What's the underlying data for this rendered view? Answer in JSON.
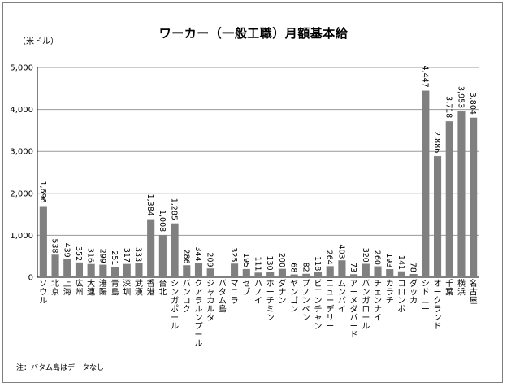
{
  "chart_data": {
    "type": "bar",
    "title": "ワーカー（一般工職）月額基本給",
    "ylabel": "（米ドル）",
    "xlabel": "",
    "ylim": [
      0,
      5000
    ],
    "yticks": [
      "0",
      "1,000",
      "2,000",
      "3,000",
      "4,000",
      "5,000"
    ],
    "ytick_values": [
      0,
      1000,
      2000,
      3000,
      4000,
      5000
    ],
    "grid": true,
    "bar_color": "#808080",
    "categories": [
      "ソウル",
      "北京",
      "上海",
      "広州",
      "大連",
      "瀋陽",
      "青島",
      "深圳",
      "武漢",
      "香港",
      "台北",
      "シンガポール",
      "バンコク",
      "クアラルンプール",
      "ジャカルタ",
      "バタム島",
      "マニラ",
      "セブ",
      "ハノイ",
      "ホーチミン",
      "ダナン",
      "ヤンゴン",
      "プノンペン",
      "ビエンチャン",
      "ニューデリー",
      "ムンバイ",
      "アーメダバード",
      "バンガロール",
      "チェンナイ",
      "カラチ",
      "コロンボ",
      "ダッカ",
      "シドニー",
      "オークランド",
      "千葉",
      "横浜",
      "名古屋"
    ],
    "values": [
      1696,
      538,
      439,
      352,
      316,
      299,
      251,
      317,
      333,
      1384,
      1008,
      1285,
      286,
      344,
      209,
      null,
      325,
      195,
      111,
      130,
      200,
      68,
      82,
      118,
      264,
      403,
      73,
      320,
      260,
      193,
      141,
      78,
      4447,
      2886,
      3718,
      3953,
      3804
    ],
    "value_labels": [
      "1,696",
      "538",
      "439",
      "352",
      "316",
      "299",
      "251",
      "317",
      "333",
      "1,384",
      "1,008",
      "1,285",
      "286",
      "344",
      "209",
      "",
      "325",
      "195",
      "111",
      "130",
      "200",
      "68",
      "82",
      "118",
      "264",
      "403",
      "73",
      "320",
      "260",
      "193",
      "141",
      "78",
      "4,447",
      "2,886",
      "3,718",
      "3,953",
      "3,804"
    ],
    "footnote": "注：バタム島はデータなし"
  }
}
